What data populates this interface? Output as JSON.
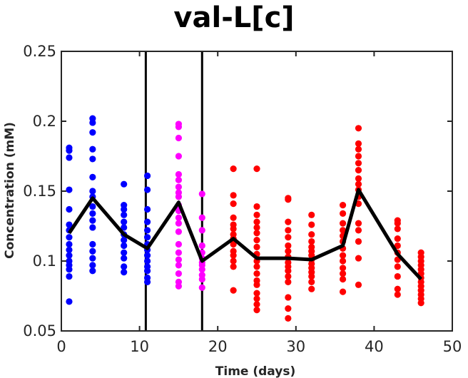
{
  "chart_data": {
    "type": "scatter",
    "title": "val-L[c]",
    "xlabel": "Time (days)",
    "ylabel": "Concentration (mM)",
    "xlim": [
      0,
      50
    ],
    "ylim": [
      0.05,
      0.25
    ],
    "xticks": [
      "0",
      "10",
      "20",
      "30",
      "40",
      "50"
    ],
    "yticks": [
      "0.05",
      "0.1",
      "0.15",
      "0.2",
      "0.25"
    ],
    "grid": false,
    "legend": "none",
    "vlines": [
      10.8,
      18
    ],
    "colors": {
      "phase1": "#0000ff",
      "phase2": "#ff00ff",
      "phase3": "#ff0000",
      "mean_line": "#000000"
    },
    "series": [
      {
        "color": "phase1",
        "points": [
          [
            1,
            0.181
          ],
          [
            1,
            0.179
          ],
          [
            1,
            0.174
          ],
          [
            1,
            0.151
          ],
          [
            1,
            0.137
          ],
          [
            1,
            0.126
          ],
          [
            1,
            0.122
          ],
          [
            1,
            0.117
          ],
          [
            1,
            0.112
          ],
          [
            1,
            0.108
          ],
          [
            1,
            0.104
          ],
          [
            1,
            0.1
          ],
          [
            1,
            0.097
          ],
          [
            1,
            0.094
          ],
          [
            1,
            0.089
          ],
          [
            1,
            0.071
          ],
          [
            4,
            0.202
          ],
          [
            4,
            0.199
          ],
          [
            4,
            0.192
          ],
          [
            4,
            0.18
          ],
          [
            4,
            0.173
          ],
          [
            4,
            0.16
          ],
          [
            4,
            0.15
          ],
          [
            4,
            0.146
          ],
          [
            4,
            0.139
          ],
          [
            4,
            0.134
          ],
          [
            4,
            0.129
          ],
          [
            4,
            0.124
          ],
          [
            4,
            0.112
          ],
          [
            4,
            0.107
          ],
          [
            4,
            0.102
          ],
          [
            4,
            0.097
          ],
          [
            4,
            0.093
          ],
          [
            8,
            0.155
          ],
          [
            8,
            0.14
          ],
          [
            8,
            0.137
          ],
          [
            8,
            0.133
          ],
          [
            8,
            0.128
          ],
          [
            8,
            0.124
          ],
          [
            8,
            0.119
          ],
          [
            8,
            0.115
          ],
          [
            8,
            0.111
          ],
          [
            8,
            0.106
          ],
          [
            8,
            0.102
          ],
          [
            8,
            0.096
          ],
          [
            8,
            0.092
          ],
          [
            11,
            0.161
          ],
          [
            11,
            0.151
          ],
          [
            11,
            0.137
          ],
          [
            11,
            0.128
          ],
          [
            11,
            0.122
          ],
          [
            11,
            0.117
          ],
          [
            11,
            0.112
          ],
          [
            11,
            0.108
          ],
          [
            11,
            0.104
          ],
          [
            11,
            0.1
          ],
          [
            11,
            0.096
          ],
          [
            11,
            0.093
          ],
          [
            11,
            0.088
          ],
          [
            11,
            0.085
          ]
        ]
      },
      {
        "color": "phase2",
        "points": [
          [
            15,
            0.198
          ],
          [
            15,
            0.196
          ],
          [
            15,
            0.188
          ],
          [
            15,
            0.175
          ],
          [
            15,
            0.162
          ],
          [
            15,
            0.158
          ],
          [
            15,
            0.153
          ],
          [
            15,
            0.149
          ],
          [
            15,
            0.146
          ],
          [
            15,
            0.14
          ],
          [
            15,
            0.136
          ],
          [
            15,
            0.131
          ],
          [
            15,
            0.127
          ],
          [
            15,
            0.121
          ],
          [
            15,
            0.112
          ],
          [
            15,
            0.106
          ],
          [
            15,
            0.101
          ],
          [
            15,
            0.097
          ],
          [
            15,
            0.091
          ],
          [
            15,
            0.085
          ],
          [
            15,
            0.082
          ],
          [
            18,
            0.148
          ],
          [
            18,
            0.131
          ],
          [
            18,
            0.122
          ],
          [
            18,
            0.111
          ],
          [
            18,
            0.106
          ],
          [
            18,
            0.102
          ],
          [
            18,
            0.099
          ],
          [
            18,
            0.097
          ],
          [
            18,
            0.094
          ],
          [
            18,
            0.09
          ],
          [
            18,
            0.087
          ],
          [
            18,
            0.081
          ]
        ]
      },
      {
        "color": "phase3",
        "points": [
          [
            22,
            0.166
          ],
          [
            22,
            0.147
          ],
          [
            22,
            0.141
          ],
          [
            22,
            0.131
          ],
          [
            22,
            0.126
          ],
          [
            22,
            0.123
          ],
          [
            22,
            0.119
          ],
          [
            22,
            0.116
          ],
          [
            22,
            0.112
          ],
          [
            22,
            0.107
          ],
          [
            22,
            0.104
          ],
          [
            22,
            0.1
          ],
          [
            22,
            0.096
          ],
          [
            22,
            0.079
          ],
          [
            25,
            0.166
          ],
          [
            25,
            0.139
          ],
          [
            25,
            0.133
          ],
          [
            25,
            0.128
          ],
          [
            25,
            0.124
          ],
          [
            25,
            0.12
          ],
          [
            25,
            0.115
          ],
          [
            25,
            0.11
          ],
          [
            25,
            0.105
          ],
          [
            25,
            0.1
          ],
          [
            25,
            0.096
          ],
          [
            25,
            0.091
          ],
          [
            25,
            0.086
          ],
          [
            25,
            0.083
          ],
          [
            25,
            0.077
          ],
          [
            25,
            0.073
          ],
          [
            25,
            0.069
          ],
          [
            25,
            0.065
          ],
          [
            29,
            0.145
          ],
          [
            29,
            0.144
          ],
          [
            29,
            0.128
          ],
          [
            29,
            0.122
          ],
          [
            29,
            0.117
          ],
          [
            29,
            0.111
          ],
          [
            29,
            0.107
          ],
          [
            29,
            0.103
          ],
          [
            29,
            0.099
          ],
          [
            29,
            0.096
          ],
          [
            29,
            0.093
          ],
          [
            29,
            0.089
          ],
          [
            29,
            0.085
          ],
          [
            29,
            0.074
          ],
          [
            29,
            0.066
          ],
          [
            29,
            0.059
          ],
          [
            32,
            0.133
          ],
          [
            32,
            0.126
          ],
          [
            32,
            0.119
          ],
          [
            32,
            0.114
          ],
          [
            32,
            0.11
          ],
          [
            32,
            0.107
          ],
          [
            32,
            0.104
          ],
          [
            32,
            0.101
          ],
          [
            32,
            0.098
          ],
          [
            32,
            0.095
          ],
          [
            32,
            0.092
          ],
          [
            32,
            0.089
          ],
          [
            32,
            0.085
          ],
          [
            32,
            0.08
          ],
          [
            36,
            0.14
          ],
          [
            36,
            0.134
          ],
          [
            36,
            0.127
          ],
          [
            36,
            0.122
          ],
          [
            36,
            0.118
          ],
          [
            36,
            0.114
          ],
          [
            36,
            0.109
          ],
          [
            36,
            0.104
          ],
          [
            36,
            0.1
          ],
          [
            36,
            0.095
          ],
          [
            36,
            0.091
          ],
          [
            36,
            0.087
          ],
          [
            36,
            0.078
          ],
          [
            38,
            0.195
          ],
          [
            38,
            0.184
          ],
          [
            38,
            0.18
          ],
          [
            38,
            0.175
          ],
          [
            38,
            0.17
          ],
          [
            38,
            0.165
          ],
          [
            38,
            0.159
          ],
          [
            38,
            0.155
          ],
          [
            38,
            0.151
          ],
          [
            38,
            0.146
          ],
          [
            38,
            0.141
          ],
          [
            38,
            0.127
          ],
          [
            38,
            0.122
          ],
          [
            38,
            0.114
          ],
          [
            38,
            0.102
          ],
          [
            38,
            0.083
          ],
          [
            43,
            0.129
          ],
          [
            43,
            0.127
          ],
          [
            43,
            0.123
          ],
          [
            43,
            0.116
          ],
          [
            43,
            0.111
          ],
          [
            43,
            0.106
          ],
          [
            43,
            0.101
          ],
          [
            43,
            0.096
          ],
          [
            43,
            0.089
          ],
          [
            43,
            0.08
          ],
          [
            43,
            0.076
          ],
          [
            46,
            0.106
          ],
          [
            46,
            0.103
          ],
          [
            46,
            0.1
          ],
          [
            46,
            0.097
          ],
          [
            46,
            0.094
          ],
          [
            46,
            0.091
          ],
          [
            46,
            0.088
          ],
          [
            46,
            0.085
          ],
          [
            46,
            0.082
          ],
          [
            46,
            0.079
          ],
          [
            46,
            0.076
          ],
          [
            46,
            0.073
          ],
          [
            46,
            0.07
          ]
        ]
      }
    ],
    "mean_line": {
      "x": [
        1,
        4,
        8,
        11,
        15,
        18,
        22,
        25,
        29,
        32,
        36,
        38,
        43,
        46
      ],
      "y": [
        0.12,
        0.145,
        0.119,
        0.109,
        0.142,
        0.1,
        0.116,
        0.102,
        0.102,
        0.101,
        0.111,
        0.151,
        0.105,
        0.087
      ]
    }
  }
}
